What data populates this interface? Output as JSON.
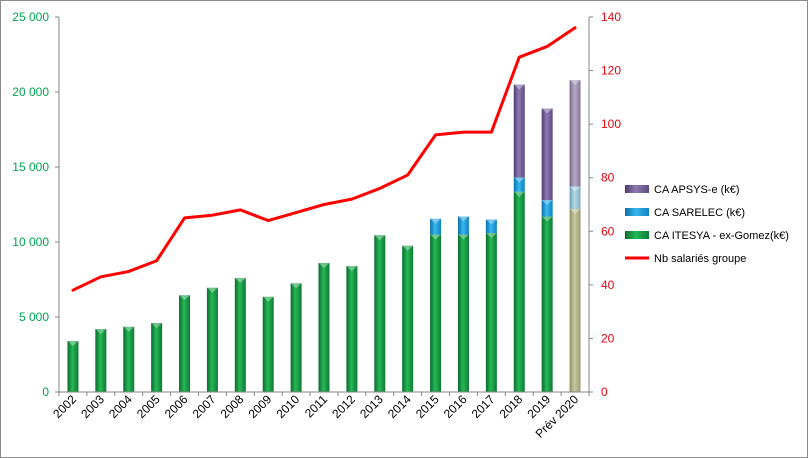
{
  "chart_data": {
    "type": "bar",
    "categories": [
      "2002",
      "2003",
      "2004",
      "2005",
      "2006",
      "2007",
      "2008",
      "2009",
      "2010",
      "2011",
      "2012",
      "2013",
      "2014",
      "2015",
      "2016",
      "2017",
      "2018",
      "2019",
      "Prév 2020"
    ],
    "series": [
      {
        "name": "CA ITESYA - ex-Gomez(k€)",
        "kind": "bar",
        "axis": "left",
        "color": "#1aa64b",
        "values": [
          3400,
          4200,
          4350,
          4600,
          6450,
          6950,
          7600,
          6350,
          7250,
          8600,
          8400,
          10450,
          9750,
          10500,
          10500,
          10600,
          13350,
          11700,
          12200
        ]
      },
      {
        "name": "CA SARELEC (k€)",
        "kind": "bar",
        "axis": "left",
        "color": "#1e9fdc",
        "values": [
          0,
          0,
          0,
          0,
          0,
          0,
          0,
          0,
          0,
          0,
          0,
          0,
          0,
          1050,
          1200,
          900,
          950,
          1100,
          1500
        ]
      },
      {
        "name": "CA APSYS-e (k€)",
        "kind": "bar",
        "axis": "left",
        "color": "#7e6aa3",
        "values": [
          0,
          0,
          0,
          0,
          0,
          0,
          0,
          0,
          0,
          0,
          0,
          0,
          0,
          0,
          0,
          0,
          6200,
          6100,
          7100
        ]
      },
      {
        "name": "Nb salariés groupe",
        "kind": "line",
        "axis": "right",
        "color": "#ff0000",
        "values": [
          38,
          43,
          45,
          49,
          65,
          66,
          68,
          64,
          67,
          70,
          72,
          76,
          81,
          96,
          97,
          97,
          125,
          129,
          136
        ]
      }
    ],
    "forecast_colors": {
      "CA ITESYA - ex-Gomez(k€)": "#b8b88e",
      "CA SARELEC (k€)": "#9fc7d6",
      "CA APSYS-e (k€)": "#a799b8"
    },
    "y_left": {
      "ylim": [
        0,
        25000
      ],
      "ticks": [
        0,
        5000,
        10000,
        15000,
        20000,
        25000
      ],
      "tick_labels": [
        "0",
        "5 000",
        "10 000",
        "15 000",
        "20 000",
        "25 000"
      ],
      "color": "#00a650"
    },
    "y_right": {
      "ylim": [
        0,
        140
      ],
      "ticks": [
        0,
        20,
        40,
        60,
        80,
        100,
        120,
        140
      ],
      "tick_labels": [
        "0",
        "20",
        "40",
        "60",
        "80",
        "100",
        "120",
        "140"
      ],
      "color": "#e30613"
    },
    "legend": {
      "placement": "right",
      "entries": [
        "CA APSYS-e (k€)",
        "CA SARELEC (k€)",
        "CA ITESYA - ex-Gomez(k€)",
        "Nb salariés groupe"
      ]
    },
    "grid": false,
    "title": "",
    "xlabel": "",
    "ylabel": ""
  }
}
